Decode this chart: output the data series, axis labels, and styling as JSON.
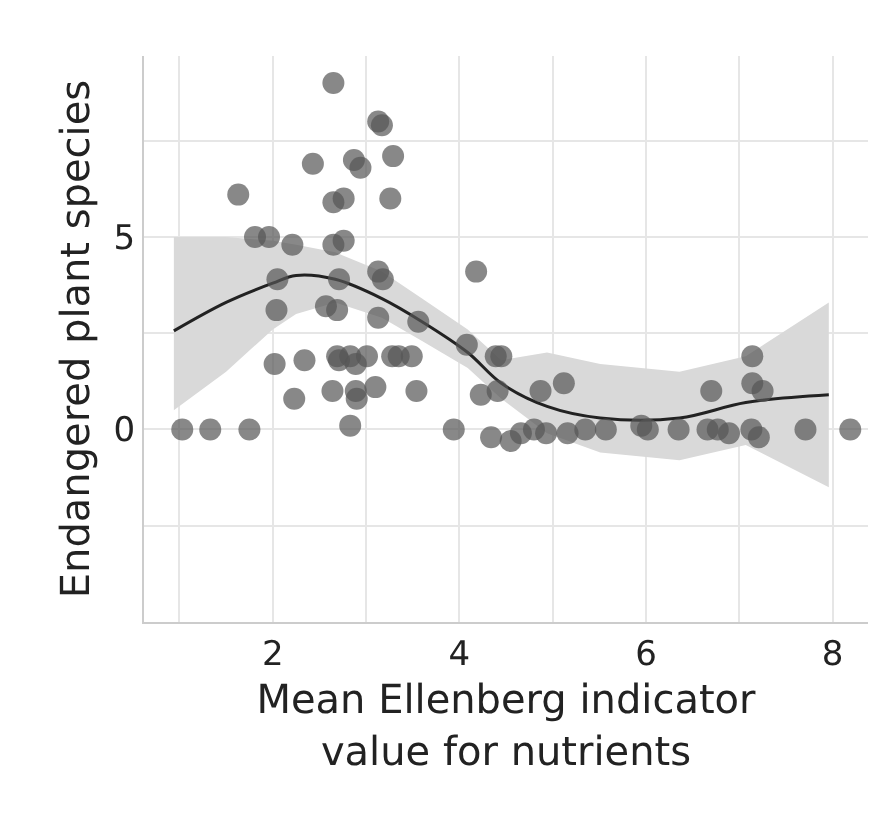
{
  "chart_data": {
    "type": "scatter",
    "xlabel": "Mean Ellenberg indicator\nvalue for nutrients",
    "ylabel": "Endangered plant species",
    "xlim": [
      0.62,
      8.38
    ],
    "ylim": [
      -5,
      9.7
    ],
    "xticks": [
      {
        "value": 1,
        "label": null
      },
      2,
      {
        "value": 3,
        "label": null
      },
      4,
      {
        "value": 5,
        "label": null
      },
      6,
      {
        "value": 7,
        "label": null
      },
      8
    ],
    "yticks": [
      {
        "value": -2.5,
        "label": null
      },
      0,
      {
        "value": 2.5,
        "label": null
      },
      5,
      {
        "value": 7.5,
        "label": null
      }
    ],
    "grid": true,
    "marker": "circle",
    "series": [
      {
        "color": "#555555",
        "x": [
          1.03,
          1.33,
          1.75,
          1.63,
          1.81,
          1.96,
          2.21,
          2.05,
          2.04,
          2.02,
          2.34,
          2.23,
          2.43,
          2.65,
          2.65,
          2.76,
          2.65,
          2.76,
          2.71,
          2.57,
          2.69,
          2.69,
          2.83,
          3.01,
          2.71,
          2.89,
          2.64,
          2.89,
          2.9,
          3.1,
          2.83,
          2.87,
          2.94,
          3.13,
          3.17,
          3.29,
          3.26,
          3.13,
          3.18,
          3.13,
          3.28,
          3.35,
          3.49,
          3.56,
          3.54,
          3.94,
          4.08,
          4.18,
          4.23,
          4.34,
          4.39,
          4.45,
          4.41,
          4.55,
          4.66,
          4.8,
          4.93,
          4.87,
          5.12,
          5.16,
          5.35,
          5.57,
          5.95,
          6.02,
          6.35,
          6.7,
          6.66,
          6.77,
          6.89,
          7.14,
          7.14,
          7.25,
          7.13,
          7.21,
          7.71,
          8.19
        ],
        "values": [
          0,
          0,
          0,
          6.1,
          5.0,
          5.0,
          4.8,
          3.9,
          3.1,
          1.7,
          1.8,
          0.8,
          6.9,
          9.0,
          5.9,
          6.0,
          4.8,
          4.9,
          3.9,
          3.2,
          3.1,
          1.9,
          1.9,
          1.9,
          1.8,
          1.7,
          1.0,
          1.0,
          0.8,
          1.1,
          0.1,
          7.0,
          6.8,
          8.0,
          7.9,
          7.1,
          6.0,
          4.1,
          3.9,
          2.9,
          1.9,
          1.9,
          1.9,
          2.8,
          1.0,
          0,
          2.2,
          4.1,
          0.9,
          -0.2,
          1.9,
          1.9,
          1.0,
          -0.3,
          -0.1,
          0,
          -0.1,
          1.0,
          1.2,
          -0.1,
          0,
          0,
          0.1,
          0,
          0,
          1.0,
          0,
          0,
          -0.1,
          1.9,
          1.2,
          1.0,
          0,
          -0.2,
          0,
          0
        ]
      },
      {
        "type": "line",
        "color": "#222222",
        "marker": "none",
        "x": [
          0.94,
          1.5,
          2.0,
          2.25,
          2.67,
          3.17,
          3.6,
          4.09,
          4.45,
          4.94,
          5.51,
          6.36,
          7.07,
          7.96
        ],
        "values": [
          2.56,
          3.3,
          3.8,
          4.0,
          3.9,
          3.4,
          2.8,
          2.0,
          1.2,
          0.6,
          0.3,
          0.3,
          0.7,
          0.9
        ],
        "lower": [
          0.5,
          1.5,
          2.6,
          3.0,
          3.3,
          2.9,
          2.3,
          1.6,
          0.8,
          -0.1,
          -0.6,
          -0.8,
          -0.4,
          -1.5
        ],
        "upper": [
          5.0,
          5.0,
          4.9,
          4.8,
          4.6,
          4.1,
          3.4,
          2.6,
          1.8,
          2.0,
          1.7,
          1.5,
          1.9,
          3.3
        ]
      }
    ]
  }
}
